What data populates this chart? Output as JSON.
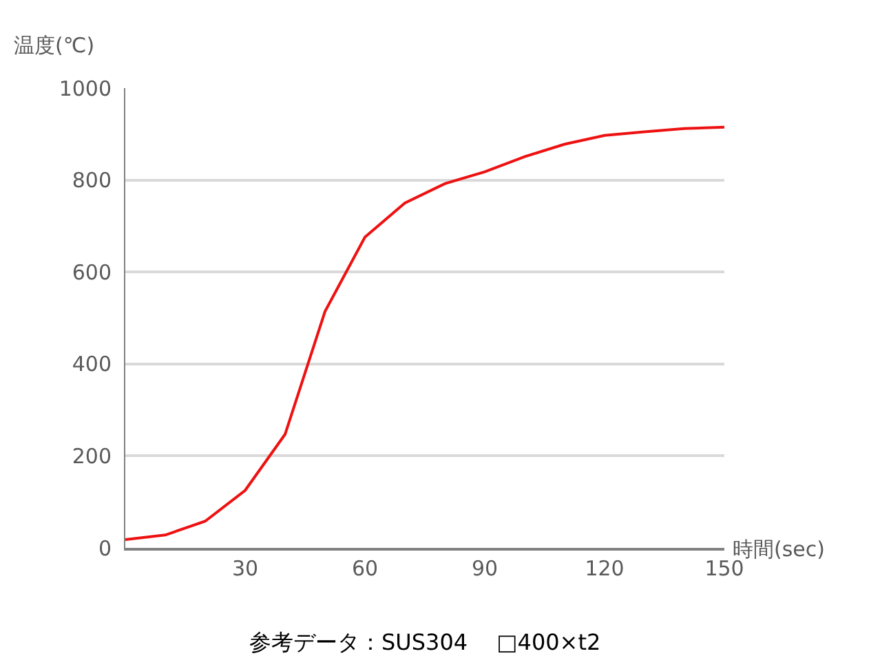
{
  "chart_data": {
    "type": "line",
    "xlabel": "時間(sec)",
    "ylabel": "温度(℃)",
    "x": [
      0,
      10,
      20,
      30,
      40,
      50,
      60,
      70,
      80,
      90,
      100,
      110,
      120,
      130,
      140,
      150
    ],
    "series": [
      {
        "color": "#ee1111",
        "values": [
          18,
          28,
          58,
          125,
          247,
          514,
          676,
          750,
          792,
          818,
          851,
          878,
          897,
          905,
          912,
          915
        ]
      }
    ],
    "xlim": [
      0,
      150
    ],
    "xticks": [
      30,
      60,
      90,
      120,
      150
    ],
    "ylim": [
      0,
      1000
    ],
    "yticks": [
      0,
      200,
      400,
      600,
      800,
      1000
    ],
    "grid": "y",
    "marker": "none",
    "line_style": "solid",
    "annotations": [
      "参考データ：SUS304　 □400×t2"
    ]
  }
}
